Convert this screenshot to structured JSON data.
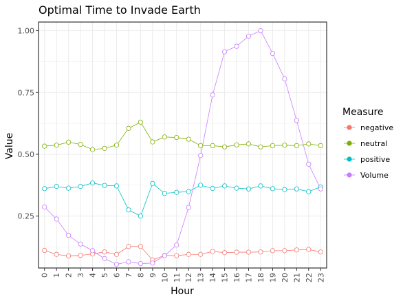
{
  "chart_data": {
    "type": "line",
    "title": "Optimal Time to Invade Earth",
    "xlabel": "Hour",
    "ylabel": "Value",
    "x": [
      0,
      1,
      2,
      3,
      4,
      5,
      6,
      7,
      8,
      9,
      10,
      11,
      12,
      13,
      14,
      15,
      16,
      17,
      18,
      19,
      20,
      21,
      22,
      23
    ],
    "xlim": [
      -0.5,
      23.5
    ],
    "ylim": [
      0.04,
      1.035
    ],
    "yticks": [
      0.25,
      0.5,
      0.75,
      1.0
    ],
    "ytick_labels": [
      "0.25",
      "0.50",
      "0.75",
      "1.00"
    ],
    "grid": true,
    "legend": {
      "title": "Measure",
      "position": "right"
    },
    "series": [
      {
        "name": "negative",
        "color": "#F8766D",
        "values": [
          0.111,
          0.095,
          0.089,
          0.091,
          0.097,
          0.105,
          0.095,
          0.127,
          0.127,
          0.072,
          0.091,
          0.09,
          0.095,
          0.095,
          0.107,
          0.102,
          0.104,
          0.104,
          0.105,
          0.11,
          0.11,
          0.113,
          0.115,
          0.105
        ]
      },
      {
        "name": "neutral",
        "color": "#7CAE00",
        "values": [
          0.533,
          0.537,
          0.549,
          0.54,
          0.519,
          0.524,
          0.537,
          0.605,
          0.63,
          0.55,
          0.57,
          0.568,
          0.561,
          0.535,
          0.535,
          0.53,
          0.538,
          0.542,
          0.53,
          0.535,
          0.537,
          0.535,
          0.542,
          0.535
        ]
      },
      {
        "name": "positive",
        "color": "#00BFC4",
        "values": [
          0.361,
          0.37,
          0.363,
          0.37,
          0.384,
          0.374,
          0.372,
          0.275,
          0.25,
          0.382,
          0.342,
          0.346,
          0.349,
          0.375,
          0.362,
          0.372,
          0.363,
          0.36,
          0.372,
          0.361,
          0.357,
          0.36,
          0.349,
          0.368
        ]
      },
      {
        "name": "Volume",
        "color": "#C77CFF",
        "values": [
          0.287,
          0.238,
          0.172,
          0.137,
          0.11,
          0.078,
          0.055,
          0.065,
          0.058,
          0.06,
          0.09,
          0.133,
          0.285,
          0.495,
          0.74,
          0.915,
          0.937,
          0.978,
          1.0,
          0.908,
          0.805,
          0.637,
          0.46,
          0.36
        ]
      }
    ]
  }
}
